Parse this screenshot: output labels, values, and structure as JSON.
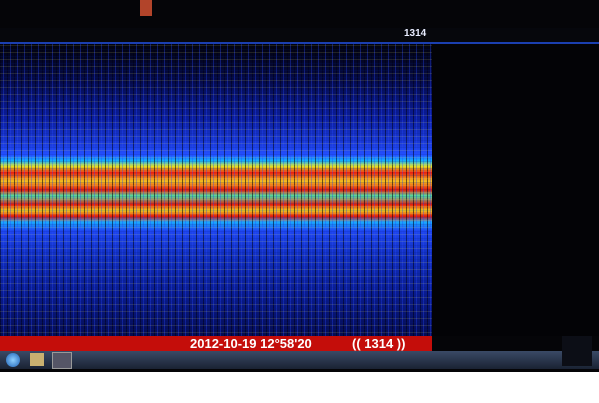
{
  "screen": {
    "channel_label": "1314",
    "timestamp": "2012-10-19 12°58'20",
    "frequency_marker": "(( 1314 ))"
  }
}
